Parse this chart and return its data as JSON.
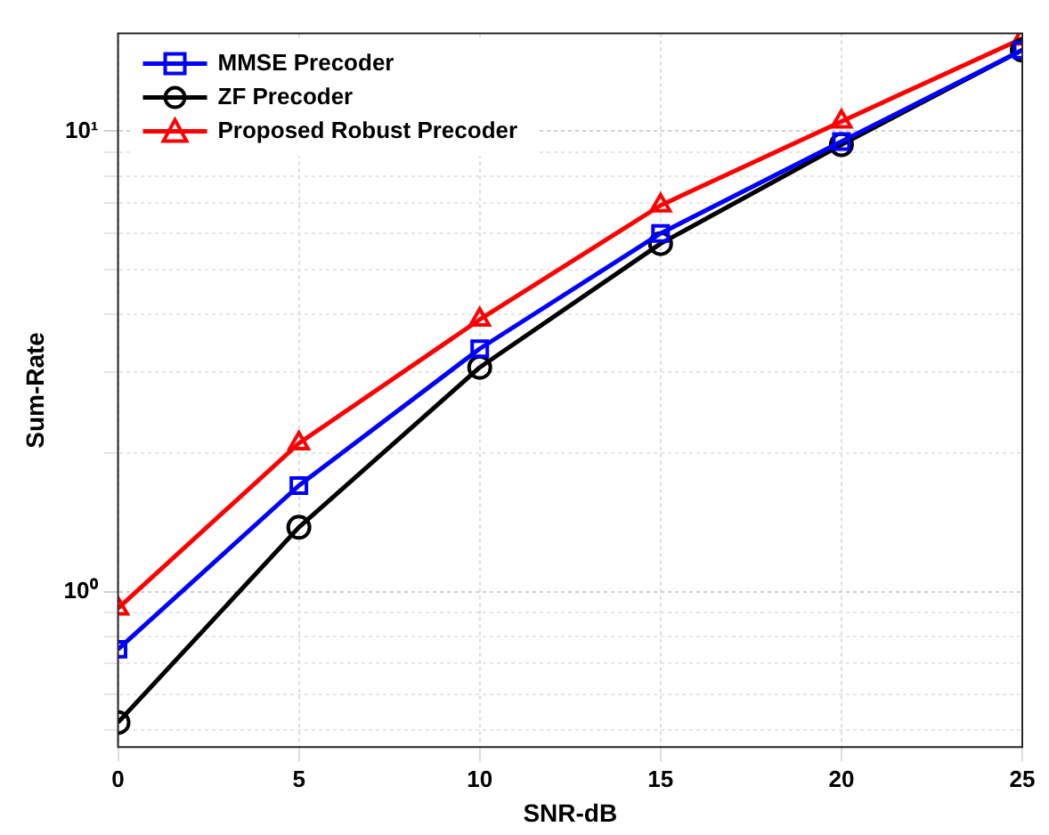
{
  "chart_data": {
    "type": "line",
    "xlabel": "SNR-dB",
    "ylabel": "Sum-Rate",
    "x": [
      0,
      5,
      10,
      15,
      20,
      25
    ],
    "series": [
      {
        "name": "MMSE Precoder",
        "color": "#0000ff",
        "marker": "square",
        "values": [
          0.75,
          1.7,
          3.37,
          6.0,
          9.5,
          15.0
        ]
      },
      {
        "name": "ZF Precoder",
        "color": "#000000",
        "marker": "circle",
        "values": [
          0.52,
          1.38,
          3.07,
          5.7,
          9.35,
          15.0
        ]
      },
      {
        "name": "Proposed Robust Precoder",
        "color": "#ff0000",
        "marker": "triangle",
        "values": [
          0.92,
          2.1,
          3.9,
          6.9,
          10.5,
          15.9
        ]
      }
    ],
    "xlim": [
      0,
      25
    ],
    "xticks": [
      0,
      5,
      10,
      15,
      20,
      25
    ],
    "log": "y",
    "ylim": [
      0.46,
      16.3
    ],
    "yticks": [
      {
        "value": 0.5,
        "label": null
      },
      {
        "value": 0.6,
        "label": null
      },
      {
        "value": 0.7,
        "label": null
      },
      {
        "value": 0.8,
        "label": null
      },
      {
        "value": 0.9,
        "label": null
      },
      {
        "value": 1,
        "label": "10⁰"
      },
      {
        "value": 2,
        "label": null
      },
      {
        "value": 3,
        "label": null
      },
      {
        "value": 4,
        "label": null
      },
      {
        "value": 5,
        "label": null
      },
      {
        "value": 6,
        "label": null
      },
      {
        "value": 7,
        "label": null
      },
      {
        "value": 8,
        "label": null
      },
      {
        "value": 9,
        "label": null
      },
      {
        "value": 10,
        "label": "10¹"
      }
    ],
    "grid": true,
    "legend": "top left",
    "line_style": "solid"
  }
}
